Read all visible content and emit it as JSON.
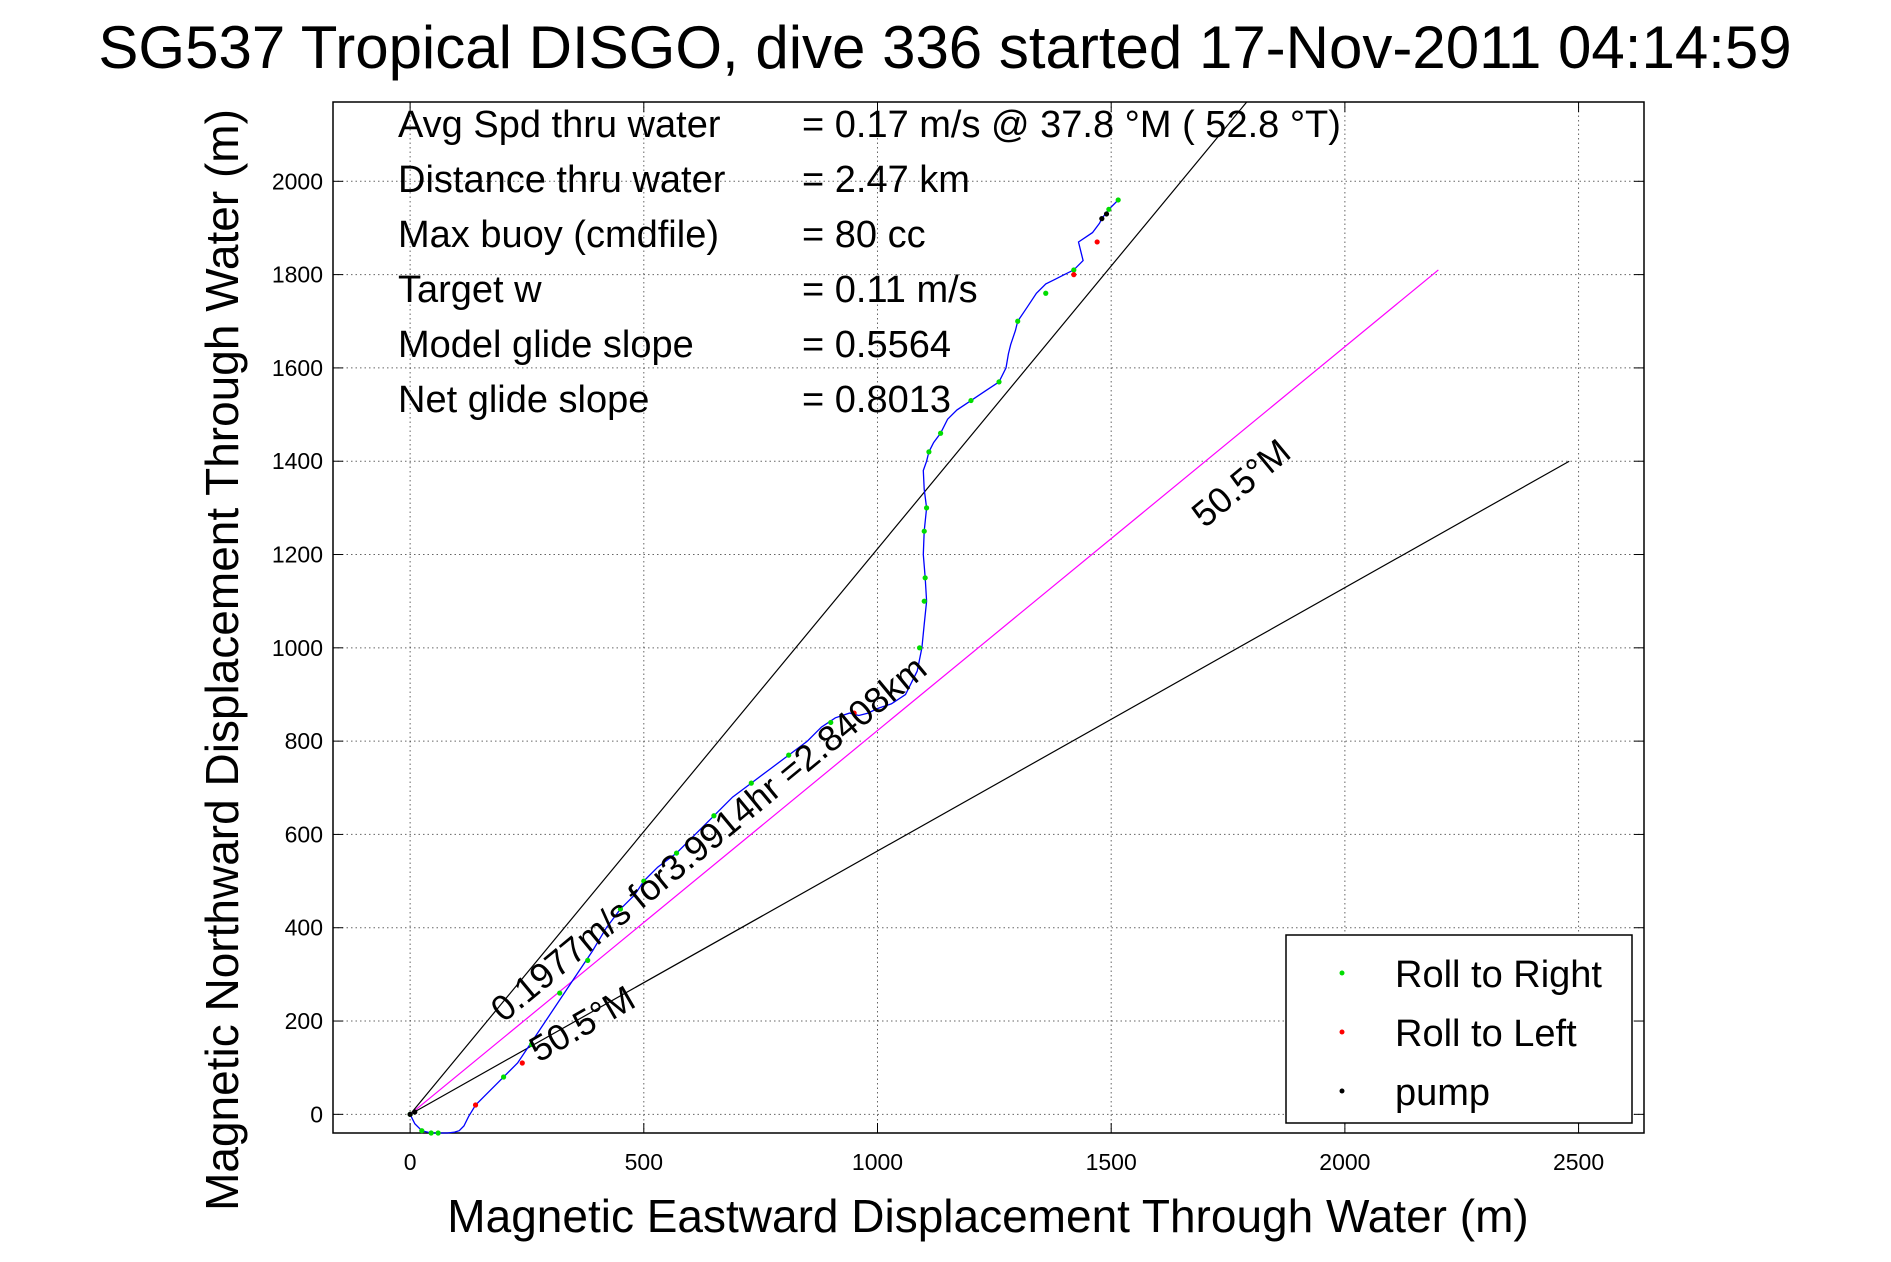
{
  "chart_data": {
    "type": "line",
    "title": "SG537 Tropical DISGO, dive 336 started 17-Nov-2011 04:14:59",
    "xlabel": "Magnetic Eastward Displacement Through Water (m)",
    "ylabel": "Magnetic Northward Displacement Through Water (m)",
    "xlim": [
      -165,
      2640
    ],
    "ylim": [
      -40,
      2170
    ],
    "xticks": [
      0,
      500,
      1000,
      1500,
      2000,
      2500
    ],
    "yticks": [
      0,
      200,
      400,
      600,
      800,
      1000,
      1200,
      1400,
      1600,
      1800,
      2000
    ],
    "grid": true,
    "legend_position": "bottom-right",
    "stats": [
      {
        "label": "Avg Spd thru water",
        "value": "=  0.17 m/s @  37.8 °M ( 52.8 °T)"
      },
      {
        "label": "Distance thru water",
        "value": "=  2.47 km"
      },
      {
        "label": "Max buoy (cmdfile)",
        "value": "= 80 cc"
      },
      {
        "label": "Target w",
        "value": "= 0.11 m/s"
      },
      {
        "label": "Model glide slope",
        "value": "= 0.5564"
      },
      {
        "label": "Net glide slope",
        "value": "= 0.8013"
      }
    ],
    "guide_lines": [
      {
        "x": [
          0,
          1790
        ],
        "y": [
          0,
          2170
        ],
        "color": "#000000"
      },
      {
        "x": [
          0,
          2200
        ],
        "y": [
          0,
          1810
        ],
        "color": "#ff00ff"
      },
      {
        "x": [
          0,
          2480
        ],
        "y": [
          0,
          1400
        ],
        "color": "#000000"
      }
    ],
    "annotations": [
      {
        "text": "0.1977m/s for3.9914hr =2.8408km",
        "x": 200,
        "y": 195,
        "angle": 39.5
      },
      {
        "text": "50.5°M",
        "x": 1700,
        "y": 1255,
        "angle": 39.5
      },
      {
        "text": "50.5°M",
        "x": 275,
        "y": 110,
        "angle": 30.0
      }
    ],
    "series": [
      {
        "name": "track",
        "color": "#0000ff",
        "x": [
          0,
          10,
          25,
          45,
          60,
          80,
          95,
          105,
          115,
          125,
          140,
          160,
          190,
          230,
          270,
          310,
          350,
          390,
          420,
          450,
          480,
          500,
          530,
          570,
          610,
          650,
          690,
          730,
          770,
          810,
          850,
          880,
          910,
          940,
          960,
          980,
          1000,
          1030,
          1060,
          1085,
          1095,
          1100,
          1105,
          1102,
          1098,
          1100,
          1105,
          1100,
          1098,
          1105,
          1110,
          1120,
          1135,
          1150,
          1170,
          1200,
          1230,
          1260,
          1275,
          1280,
          1285,
          1295,
          1300,
          1320,
          1340,
          1360,
          1380,
          1400,
          1420,
          1440,
          1435,
          1430,
          1445,
          1460,
          1475,
          1480,
          1495,
          1515
        ],
        "y": [
          0,
          -20,
          -35,
          -40,
          -40,
          -40,
          -38,
          -35,
          -25,
          -5,
          20,
          40,
          70,
          110,
          170,
          230,
          290,
          350,
          400,
          440,
          470,
          500,
          530,
          560,
          600,
          640,
          680,
          710,
          740,
          770,
          800,
          830,
          850,
          860,
          855,
          860,
          870,
          880,
          900,
          950,
          1000,
          1050,
          1100,
          1150,
          1200,
          1250,
          1300,
          1340,
          1380,
          1400,
          1420,
          1440,
          1460,
          1490,
          1510,
          1530,
          1550,
          1570,
          1600,
          1630,
          1650,
          1680,
          1700,
          1730,
          1760,
          1780,
          1790,
          1800,
          1810,
          1830,
          1850,
          1870,
          1880,
          1890,
          1910,
          1920,
          1940,
          1960
        ]
      }
    ],
    "markers": {
      "roll_right": {
        "color": "#00dd00",
        "x": [
          0,
          25,
          45,
          60,
          200,
          260,
          320,
          380,
          450,
          500,
          570,
          650,
          730,
          810,
          900,
          1090,
          1100,
          1102,
          1100,
          1105,
          1110,
          1135,
          1200,
          1260,
          1300,
          1360,
          1420,
          1495,
          1515
        ],
        "y": [
          0,
          -35,
          -40,
          -40,
          80,
          150,
          260,
          330,
          440,
          500,
          560,
          640,
          710,
          770,
          840,
          1000,
          1100,
          1150,
          1250,
          1300,
          1420,
          1460,
          1530,
          1570,
          1700,
          1760,
          1810,
          1940,
          1960
        ]
      },
      "roll_left": {
        "color": "#ff0000",
        "x": [
          140,
          240,
          950,
          1420,
          1470
        ],
        "y": [
          20,
          110,
          860,
          1800,
          1870
        ]
      },
      "pump": {
        "color": "#000000",
        "x": [
          0,
          10,
          1480,
          1490
        ],
        "y": [
          0,
          5,
          1920,
          1930
        ]
      }
    },
    "legend": [
      {
        "label": "Roll to Right",
        "color": "#00dd00"
      },
      {
        "label": "Roll to Left",
        "color": "#ff0000"
      },
      {
        "label": "pump",
        "color": "#000000"
      }
    ]
  }
}
